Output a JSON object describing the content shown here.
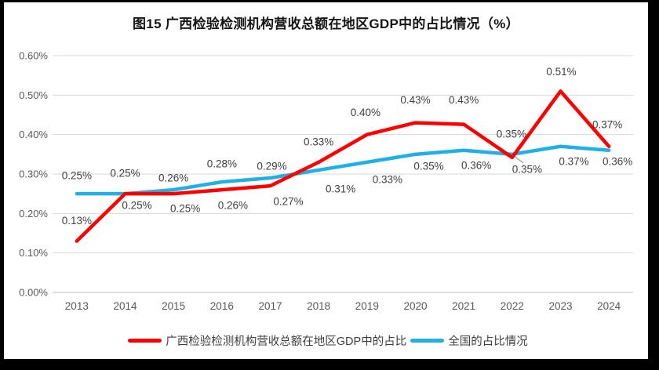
{
  "chart_data": {
    "type": "line",
    "title": "图15 广西检验检测机构营收总额在地区GDP中的占比情况（%）",
    "categories": [
      "2013",
      "2014",
      "2015",
      "2016",
      "2017",
      "2018",
      "2019",
      "2020",
      "2021",
      "2022",
      "2023",
      "2024"
    ],
    "series": [
      {
        "name": "广西检验检测机构营收总额在地区GDP中的占比",
        "color": "#FF0000",
        "values": [
          0.13,
          0.25,
          0.25,
          0.26,
          0.27,
          0.33,
          0.4,
          0.43,
          0.43,
          0.35,
          0.51,
          0.37
        ],
        "labels": [
          "0.13%",
          "0.25%",
          "0.25%",
          "0.26%",
          "0.27%",
          "0.33%",
          "0.40%",
          "0.43%",
          "0.43%",
          "0.35%",
          "0.51%",
          "0.37%"
        ]
      },
      {
        "name": "全国的占比情况",
        "color": "#1FB1E6",
        "values": [
          0.25,
          0.25,
          0.26,
          0.28,
          0.29,
          0.31,
          0.33,
          0.35,
          0.36,
          0.35,
          0.37,
          0.36
        ],
        "labels": [
          "0.25%",
          "0.25%",
          "0.26%",
          "0.28%",
          "0.29%",
          "0.31%",
          "0.33%",
          "0.35%",
          "0.36%",
          "0.35%",
          "0.37%",
          "0.36%"
        ]
      }
    ],
    "y_axis": {
      "ticks": [
        "0.00%",
        "0.10%",
        "0.20%",
        "0.30%",
        "0.40%",
        "0.50%",
        "0.60%"
      ],
      "min": 0,
      "max": 0.6
    },
    "grid": true,
    "legend_position": "bottom"
  },
  "colors": {
    "gridline": "#D9D9D9",
    "axis_line": "#BFBFBF",
    "axis_label": "#595959",
    "data_label": "#3f3f3f",
    "leader_line": "#A6A6A6",
    "frame": "#000000",
    "canvas": "#FFFFFF"
  }
}
